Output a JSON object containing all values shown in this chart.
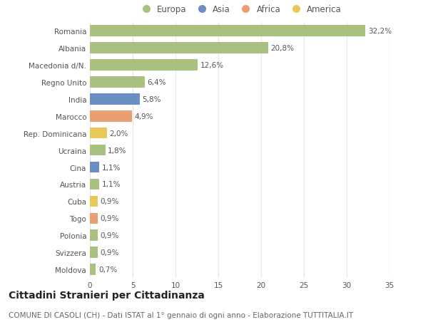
{
  "categories": [
    "Moldova",
    "Svizzera",
    "Polonia",
    "Togo",
    "Cuba",
    "Austria",
    "Cina",
    "Ucraina",
    "Rep. Dominicana",
    "Marocco",
    "India",
    "Regno Unito",
    "Macedonia d/N.",
    "Albania",
    "Romania"
  ],
  "values": [
    0.7,
    0.9,
    0.9,
    0.9,
    0.9,
    1.1,
    1.1,
    1.8,
    2.0,
    4.9,
    5.8,
    6.4,
    12.6,
    20.8,
    32.2
  ],
  "labels": [
    "0,7%",
    "0,9%",
    "0,9%",
    "0,9%",
    "0,9%",
    "1,1%",
    "1,1%",
    "1,8%",
    "2,0%",
    "4,9%",
    "5,8%",
    "6,4%",
    "12,6%",
    "20,8%",
    "32,2%"
  ],
  "colors": [
    "#a8c080",
    "#a8c080",
    "#a8c080",
    "#e8a070",
    "#e8c858",
    "#a8c080",
    "#6b8fc4",
    "#a8c080",
    "#e8c858",
    "#e8a070",
    "#6b8fc4",
    "#a8c080",
    "#a8c080",
    "#a8c080",
    "#a8c080"
  ],
  "legend_labels": [
    "Europa",
    "Asia",
    "Africa",
    "America"
  ],
  "legend_colors": [
    "#a8c080",
    "#6b8fc4",
    "#e8a070",
    "#e8c858"
  ],
  "title": "Cittadini Stranieri per Cittadinanza",
  "subtitle": "COMUNE DI CASOLI (CH) - Dati ISTAT al 1° gennaio di ogni anno - Elaborazione TUTTITALIA.IT",
  "xlim": [
    0,
    35
  ],
  "xticks": [
    0,
    5,
    10,
    15,
    20,
    25,
    30,
    35
  ],
  "bg_color": "#ffffff",
  "grid_color": "#e8e8e8",
  "bar_height": 0.65,
  "title_fontsize": 10,
  "subtitle_fontsize": 7.5,
  "label_fontsize": 7.5,
  "tick_fontsize": 7.5,
  "legend_fontsize": 8.5
}
